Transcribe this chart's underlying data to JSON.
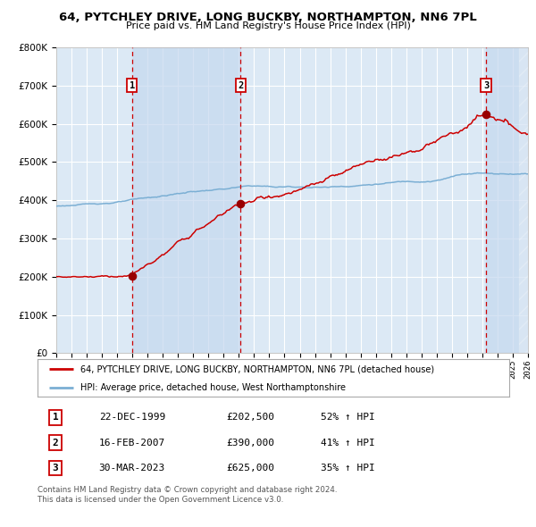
{
  "title": "64, PYTCHLEY DRIVE, LONG BUCKBY, NORTHAMPTON, NN6 7PL",
  "subtitle": "Price paid vs. HM Land Registry's House Price Index (HPI)",
  "legend_line1": "64, PYTCHLEY DRIVE, LONG BUCKBY, NORTHAMPTON, NN6 7PL (detached house)",
  "legend_line2": "HPI: Average price, detached house, West Northamptonshire",
  "footer1": "Contains HM Land Registry data © Crown copyright and database right 2024.",
  "footer2": "This data is licensed under the Open Government Licence v3.0.",
  "sale1_label": "1",
  "sale1_date": "22-DEC-1999",
  "sale1_price": "£202,500",
  "sale1_hpi": "52% ↑ HPI",
  "sale1_year": 1999.97,
  "sale1_value": 202500,
  "sale2_label": "2",
  "sale2_date": "16-FEB-2007",
  "sale2_price": "£390,000",
  "sale2_hpi": "41% ↑ HPI",
  "sale2_year": 2007.12,
  "sale2_value": 390000,
  "sale3_label": "3",
  "sale3_date": "30-MAR-2023",
  "sale3_price": "£625,000",
  "sale3_hpi": "35% ↑ HPI",
  "sale3_year": 2023.25,
  "sale3_value": 625000,
  "red_color": "#cc0000",
  "blue_color": "#7bafd4",
  "dashed_color": "#cc0000",
  "background_chart": "#dce9f5",
  "background_outside": "#ffffff",
  "grid_color": "#ffffff",
  "xmin": 1995,
  "xmax": 2026,
  "ymin": 0,
  "ymax": 800000,
  "shade_color": "#c5d8ee"
}
